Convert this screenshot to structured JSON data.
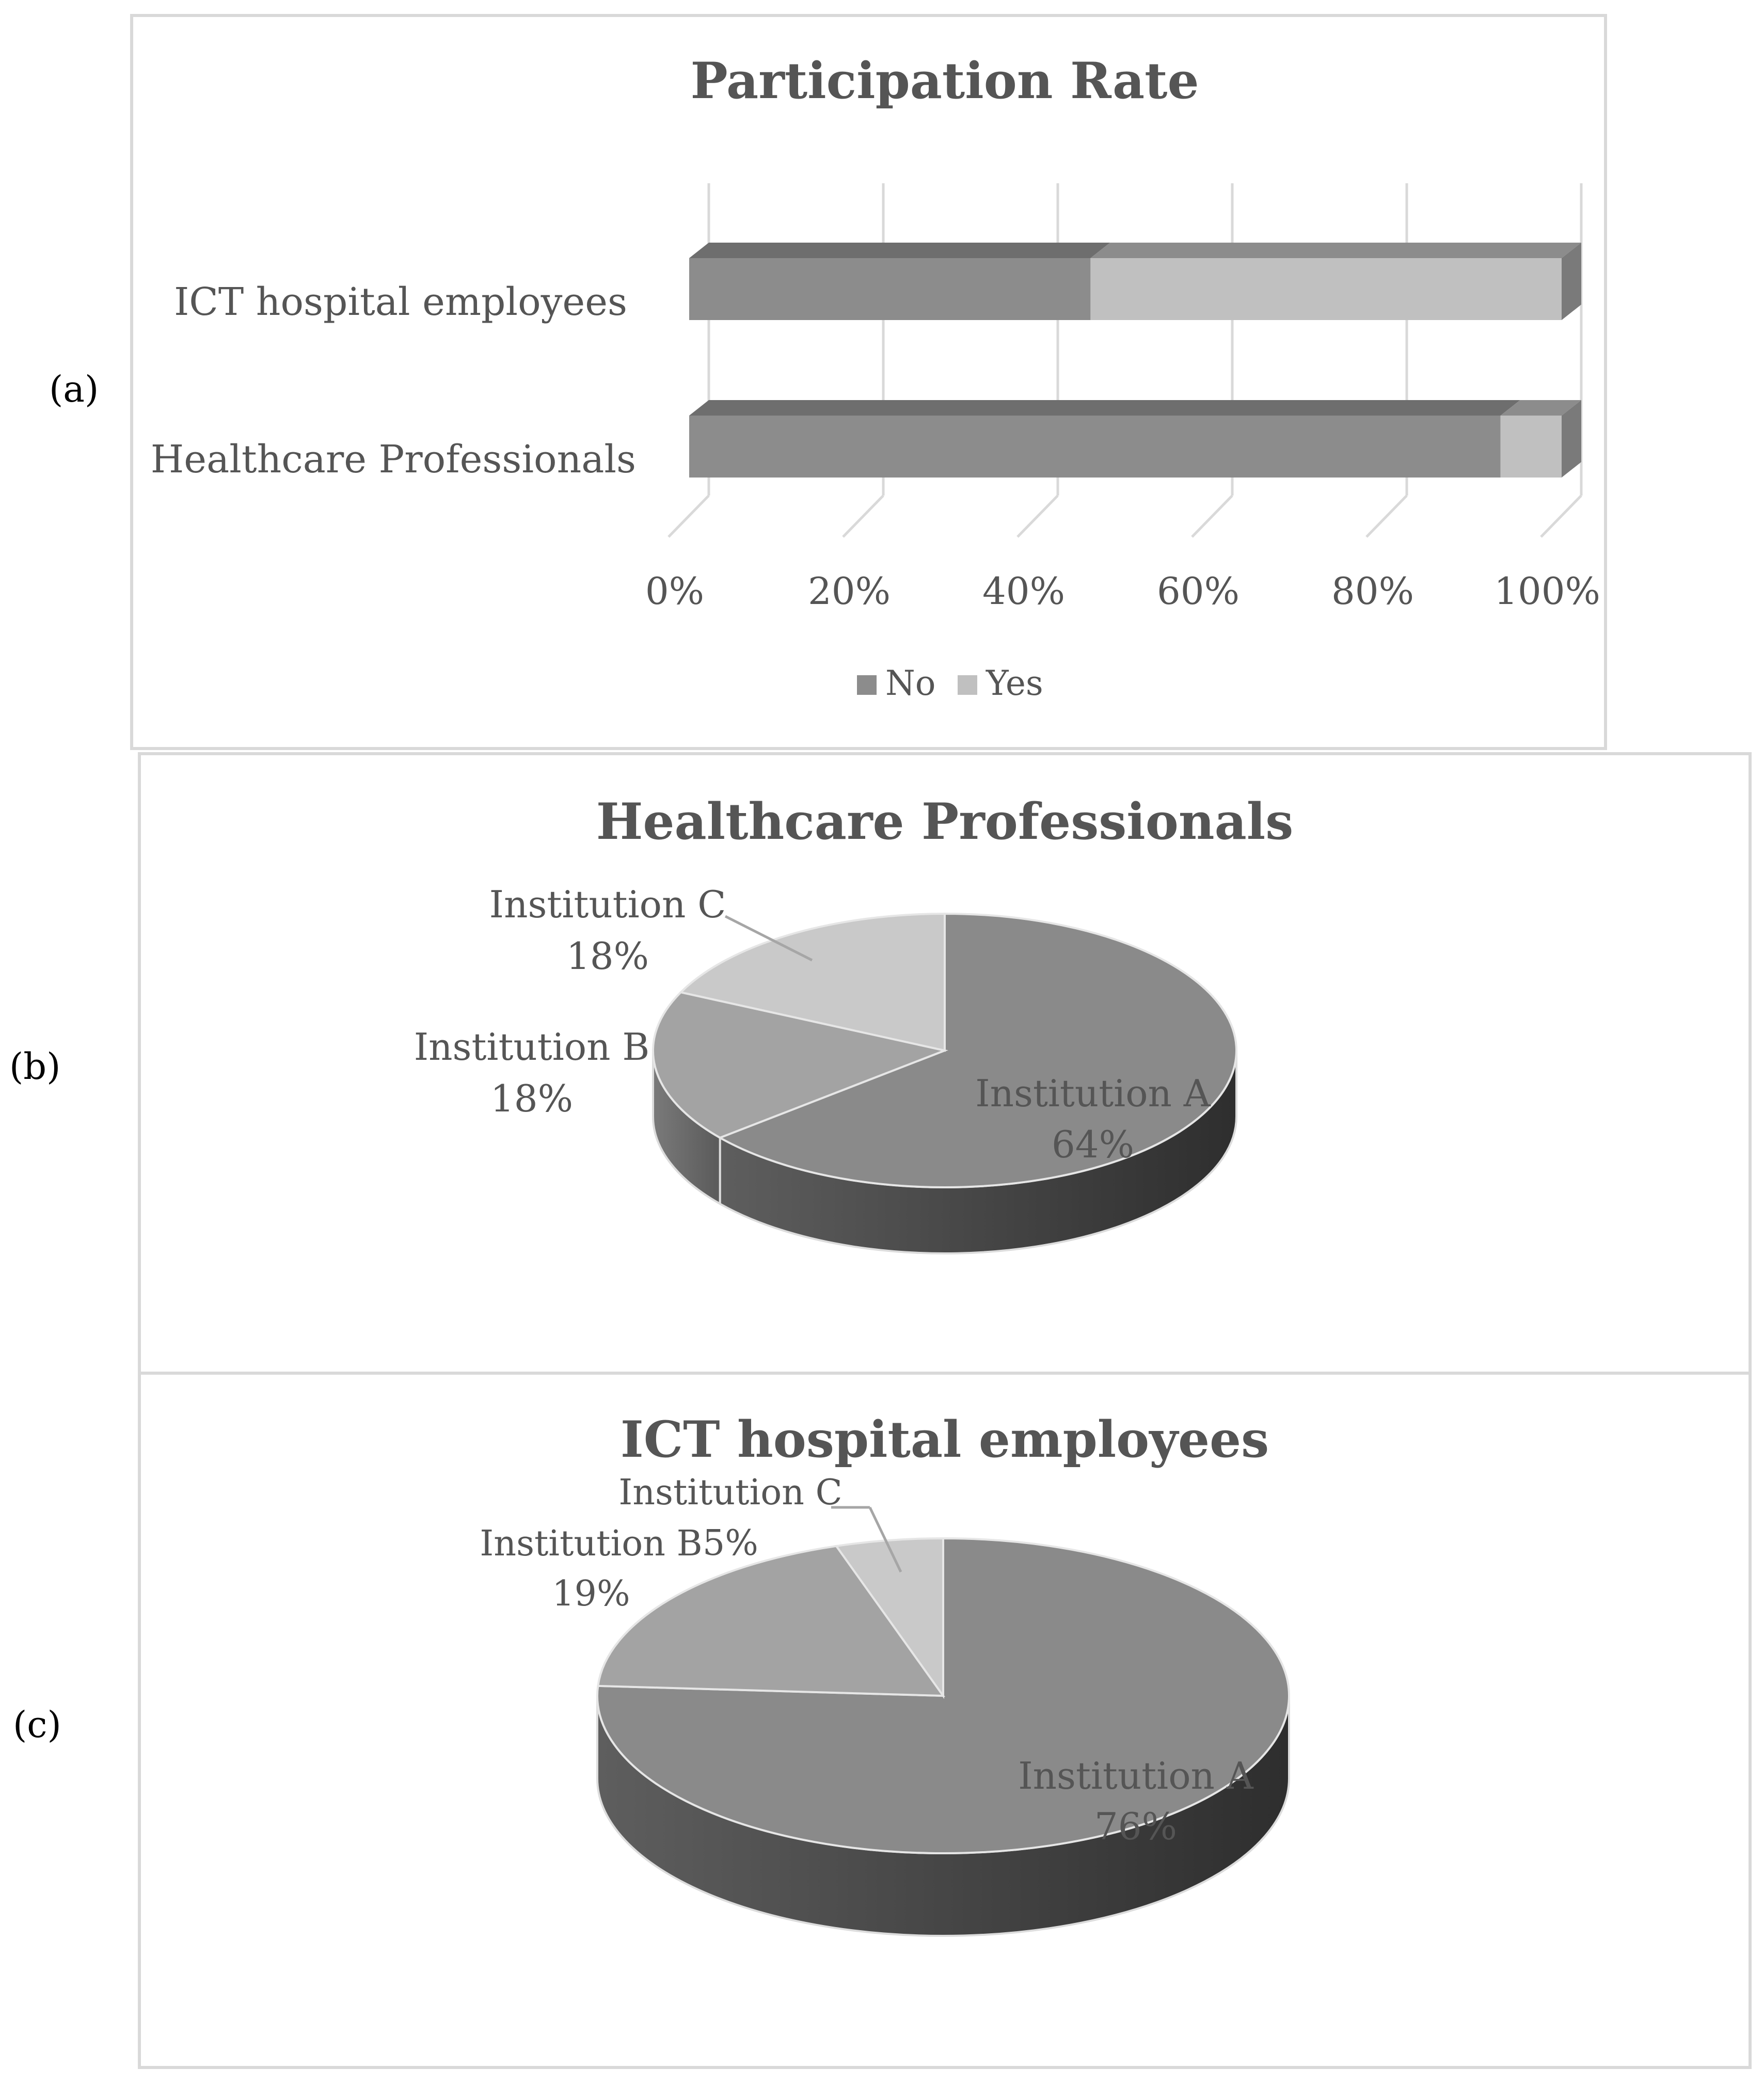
{
  "chart_data": [
    {
      "panel": "(a)",
      "type": "bar",
      "orientation": "horizontal",
      "stacked": "percent",
      "title": "Participation Rate",
      "categories": [
        "ICT hospital employees",
        "Healthcare Professionals"
      ],
      "series": [
        {
          "name": "No",
          "color": "#8c8c8c",
          "values": [
            46,
            93
          ]
        },
        {
          "name": "Yes",
          "color": "#c0c0c0",
          "values": [
            54,
            7
          ]
        }
      ],
      "xticks": [
        "0%",
        "20%",
        "40%",
        "60%",
        "80%",
        "100%"
      ],
      "xlim": [
        0,
        100
      ],
      "legend": "bottom"
    },
    {
      "panel": "(b)",
      "type": "pie",
      "title": "Healthcare Professionals",
      "slices": [
        {
          "label": "Institution A",
          "value": 64,
          "text": "64%",
          "color": "#8a8a8a"
        },
        {
          "label": "Institution B",
          "value": 18,
          "text": "18%",
          "color": "#a3a3a3"
        },
        {
          "label": "Institution C",
          "value": 18,
          "text": "18%",
          "color": "#c9c9c9"
        }
      ]
    },
    {
      "panel": "(c)",
      "type": "pie",
      "title": "ICT hospital employees",
      "slices": [
        {
          "label": "Institution A",
          "value": 76,
          "text": "76%",
          "color": "#8a8a8a"
        },
        {
          "label": "Institution B",
          "value": 19,
          "text": "19%",
          "color": "#a3a3a3"
        },
        {
          "label": "Institution C",
          "value": 5,
          "text": "5%",
          "color": "#c9c9c9"
        }
      ]
    }
  ]
}
